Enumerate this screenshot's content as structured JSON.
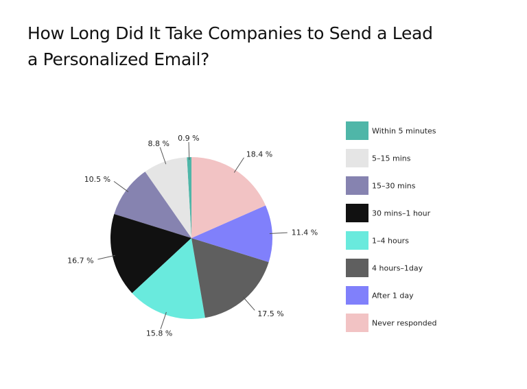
{
  "chart_data": {
    "type": "pie",
    "title": "How Long Did It Take Companies to Send a Lead a Personalized Email?",
    "legend_position": "right",
    "slices": [
      {
        "label": "Within 5 minutes",
        "value": 0.9,
        "display": "0.9 %",
        "color": "#4fb6a8"
      },
      {
        "label": "5–15 mins",
        "value": 8.8,
        "display": "8.8 %",
        "color": "#e5e5e5"
      },
      {
        "label": "15–30 mins",
        "value": 10.5,
        "display": "10.5 %",
        "color": "#8683b0"
      },
      {
        "label": "30 mins–1 hour",
        "value": 16.7,
        "display": "16.7 %",
        "color": "#111111"
      },
      {
        "label": "1–4 hours",
        "value": 15.8,
        "display": "15.8 %",
        "color": "#69eadd"
      },
      {
        "label": "4 hours–1day",
        "value": 17.5,
        "display": "17.5 %",
        "color": "#5f5f5f"
      },
      {
        "label": "After 1 day",
        "value": 11.4,
        "display": "11.4 %",
        "color": "#8080fb"
      },
      {
        "label": "Never responded",
        "value": 18.4,
        "display": "18.4 %",
        "color": "#f2c3c4"
      }
    ]
  }
}
